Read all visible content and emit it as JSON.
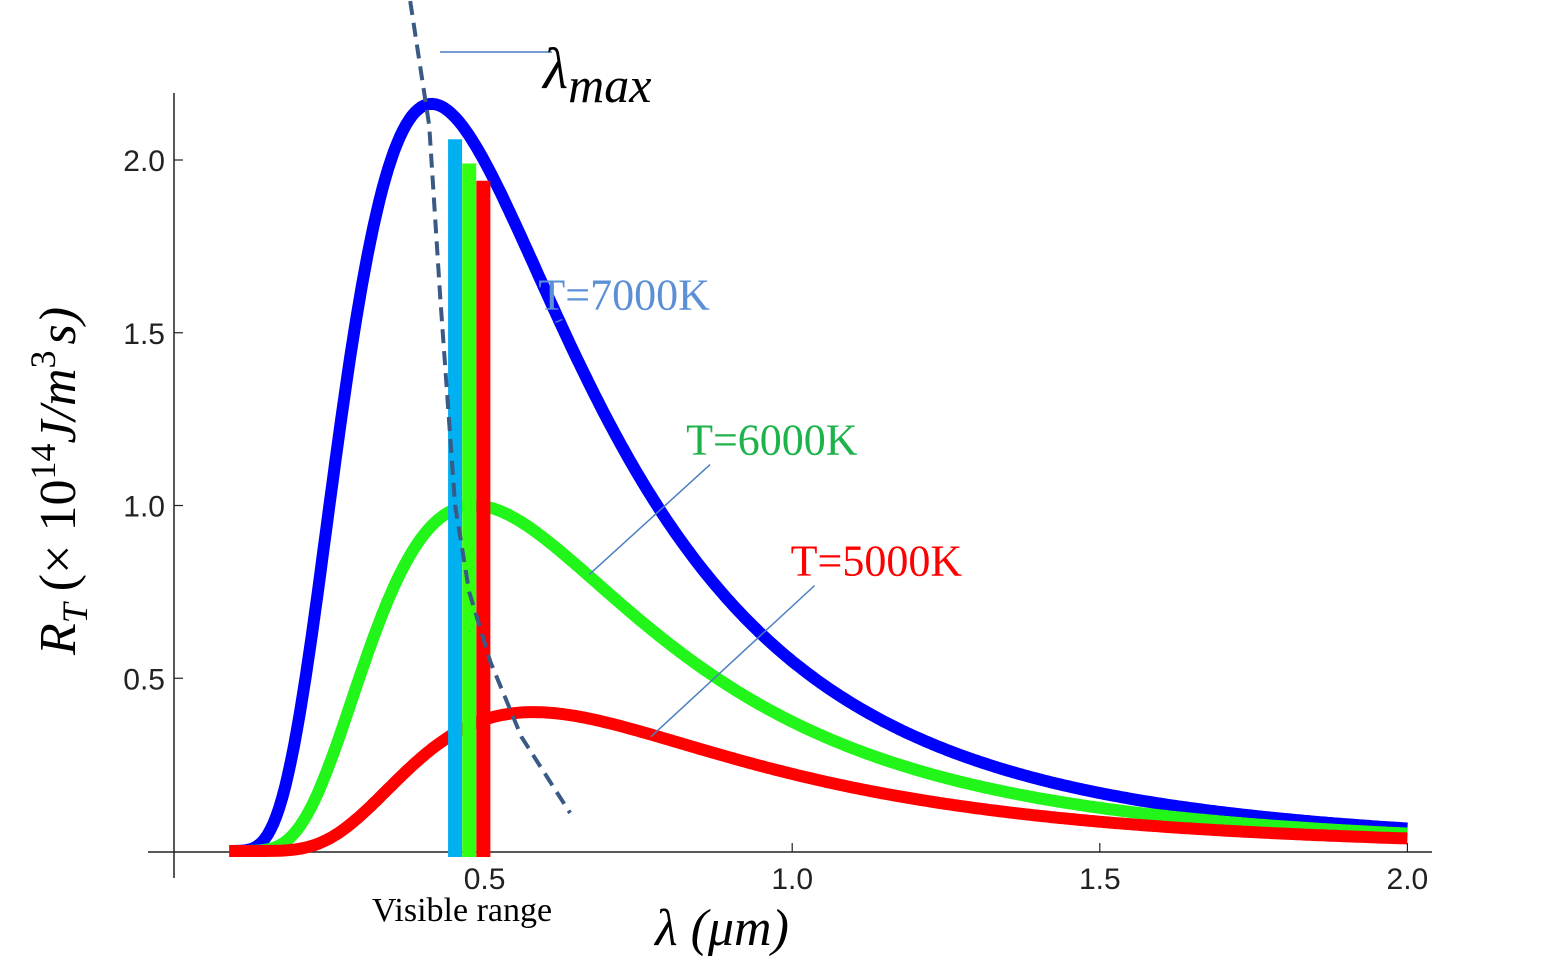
{
  "chart_data": {
    "type": "line",
    "title": "",
    "xlabel": "λ (μm)",
    "ylabel_parts": {
      "symbol": "R",
      "sub": "T",
      "prefix": "(× 10",
      "exp": "14",
      "unit": "J/m",
      "unit_exp": "3",
      "suffix": "s)"
    },
    "xlim": [
      0,
      2.05
    ],
    "ylim": [
      0,
      2.2
    ],
    "x_ticks": [
      {
        "value": 0.5,
        "label": "0.5"
      },
      {
        "value": 1.0,
        "label": "1.0"
      },
      {
        "value": 1.5,
        "label": "1.5"
      },
      {
        "value": 2.0,
        "label": "2.0"
      }
    ],
    "y_ticks": [
      {
        "value": 0.5,
        "label": "0.5"
      },
      {
        "value": 1.0,
        "label": "1.0"
      },
      {
        "value": 1.5,
        "label": "1.5"
      },
      {
        "value": 2.0,
        "label": "2.0"
      }
    ],
    "grid": false,
    "curve_model": "Planck spectral exitance, units 1e14 W/m^3",
    "x_range_plotted": [
      0.085,
      2.0
    ],
    "series": [
      {
        "name": "T=7000K",
        "temperature_K": 7000,
        "peak_value": 2.16,
        "peak_wavelength_um": 0.414,
        "color": "#0000ff",
        "label_color": "#5b8fd6",
        "label_anchor": [
          0.62,
          1.55
        ],
        "leader_to": [
          0.615,
          1.53
        ]
      },
      {
        "name": "T=6000K",
        "temperature_K": 6000,
        "peak_value": 1.0,
        "peak_wavelength_um": 0.483,
        "color": "#22f51a",
        "label_color": "#1db34a",
        "label_anchor": [
          0.86,
          1.13
        ],
        "leader_to": [
          0.67,
          0.8
        ]
      },
      {
        "name": "T=5000K",
        "temperature_K": 5000,
        "peak_value": 0.4,
        "peak_wavelength_um": 0.58,
        "color": "#ff0000",
        "label_color": "#ff0000",
        "label_anchor": [
          1.03,
          0.78
        ],
        "leader_to": [
          0.77,
          0.33
        ]
      }
    ],
    "lambda_max_line": {
      "label": "λ",
      "label_sub": "max",
      "color": "#3a5a85",
      "points": [
        [
          0.379,
          2.46
        ],
        [
          0.41,
          2.1
        ],
        [
          0.428,
          1.6
        ],
        [
          0.44,
          1.3
        ],
        [
          0.452,
          1.0
        ],
        [
          0.475,
          0.75
        ],
        [
          0.509,
          0.55
        ],
        [
          0.56,
          0.33
        ],
        [
          0.639,
          0.11
        ]
      ]
    },
    "visible_range": {
      "label": "Visible range",
      "bars": [
        {
          "name": "blue-violet",
          "x": 0.452,
          "top": 2.06,
          "color": "#00b0f0"
        },
        {
          "name": "green",
          "x": 0.475,
          "top": 1.99,
          "color": "#33ff11"
        },
        {
          "name": "red",
          "x": 0.498,
          "top": 1.94,
          "color": "#ff0000"
        }
      ]
    }
  }
}
